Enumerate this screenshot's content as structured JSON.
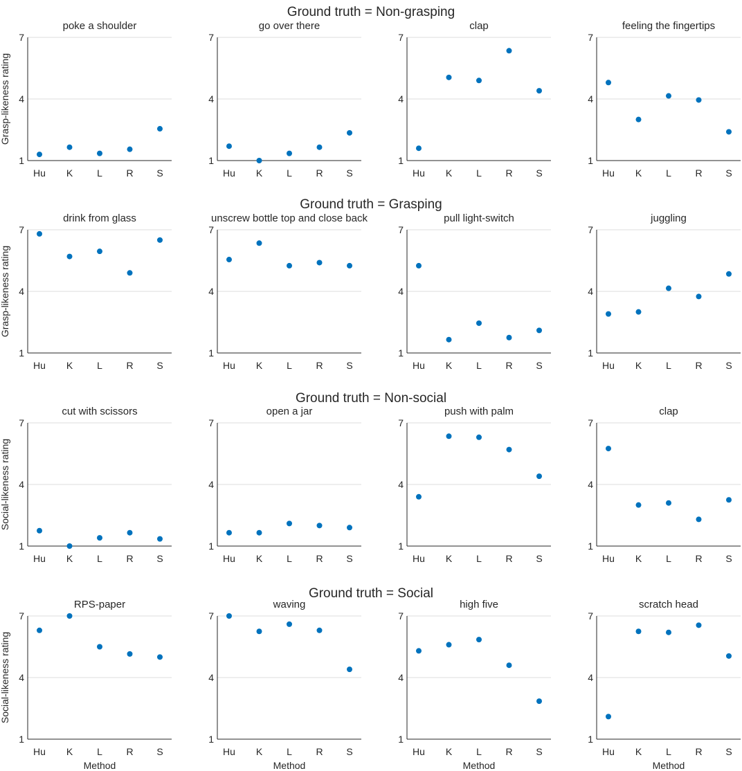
{
  "chart_data": {
    "type": "scatter",
    "categories": [
      "Hu",
      "K",
      "L",
      "R",
      "S"
    ],
    "yticks": [
      1,
      4,
      7
    ],
    "ylim": [
      1,
      7
    ],
    "xlabel": "Method",
    "marker_color": "#0072BD",
    "rows": [
      {
        "title": "Ground truth = Non-grasping",
        "ylabel": "Grasp-likeness rating",
        "panels": [
          {
            "title": "poke a shoulder",
            "values": [
              1.3,
              1.65,
              1.35,
              1.55,
              2.55
            ]
          },
          {
            "title": "go over there",
            "values": [
              1.7,
              1.0,
              1.35,
              1.65,
              2.35
            ]
          },
          {
            "title": "clap",
            "values": [
              1.6,
              5.05,
              4.9,
              6.35,
              4.4
            ]
          },
          {
            "title": "feeling the fingertips",
            "values": [
              4.8,
              3.0,
              4.15,
              3.95,
              2.4
            ]
          }
        ]
      },
      {
        "title": "Ground truth = Grasping",
        "ylabel": "Grasp-likeness rating",
        "panels": [
          {
            "title": "drink from glass",
            "values": [
              6.8,
              5.7,
              5.95,
              4.9,
              6.5
            ]
          },
          {
            "title": "unscrew bottle top and close back",
            "values": [
              5.55,
              6.35,
              5.25,
              5.4,
              5.25
            ]
          },
          {
            "title": "pull light-switch",
            "values": [
              5.25,
              1.65,
              2.45,
              1.75,
              2.1
            ]
          },
          {
            "title": "juggling",
            "values": [
              2.9,
              3.0,
              4.15,
              3.75,
              4.85
            ]
          }
        ]
      },
      {
        "title": "Ground truth = Non-social",
        "ylabel": "Social-likeness rating",
        "panels": [
          {
            "title": "cut with scissors",
            "values": [
              1.75,
              1.0,
              1.4,
              1.65,
              1.35
            ]
          },
          {
            "title": "open a jar",
            "values": [
              1.65,
              1.65,
              2.1,
              2.0,
              1.9
            ]
          },
          {
            "title": "push with palm",
            "values": [
              3.4,
              6.35,
              6.3,
              5.7,
              4.4
            ]
          },
          {
            "title": "clap",
            "values": [
              5.75,
              3.0,
              3.1,
              2.3,
              3.25
            ]
          }
        ]
      },
      {
        "title": "Ground truth = Social",
        "ylabel": "Social-likeness rating",
        "panels": [
          {
            "title": "RPS-paper",
            "values": [
              6.3,
              7.0,
              5.5,
              5.15,
              5.0
            ]
          },
          {
            "title": "waving",
            "values": [
              7.0,
              6.25,
              6.6,
              6.3,
              4.4
            ]
          },
          {
            "title": "high five",
            "values": [
              5.3,
              5.6,
              5.85,
              4.6,
              2.85
            ]
          },
          {
            "title": "scratch head",
            "values": [
              2.1,
              6.25,
              6.2,
              6.55,
              5.05
            ]
          }
        ]
      }
    ]
  }
}
